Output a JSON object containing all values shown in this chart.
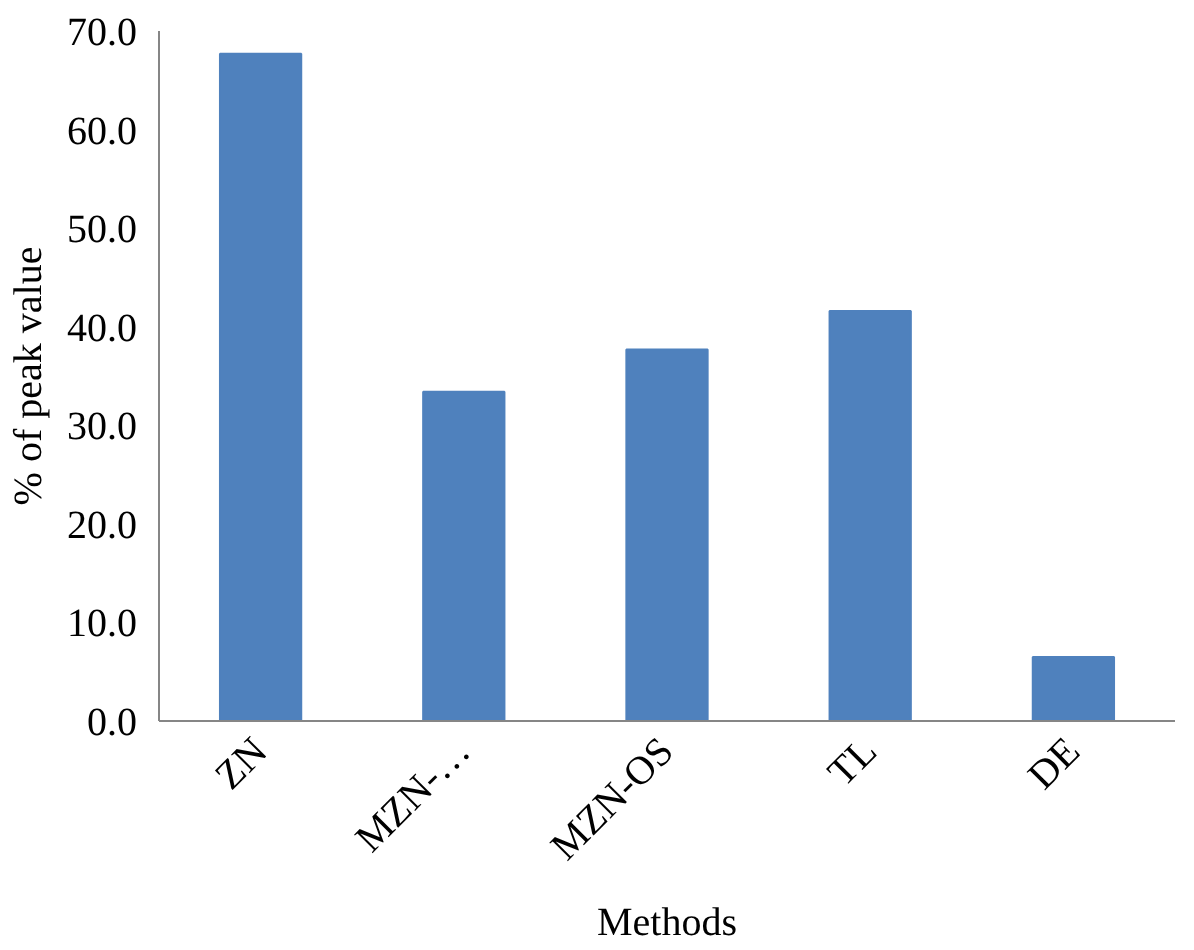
{
  "chart_data": {
    "type": "bar",
    "xlabel": "Methods",
    "ylabel": "% of peak value",
    "categories": [
      "ZN",
      "MZN-…",
      "MZN-OS",
      "TL",
      "DE"
    ],
    "values": [
      67.7,
      33.4,
      37.7,
      41.6,
      6.5
    ],
    "color": "#4f81bd",
    "ylim": [
      0,
      70
    ],
    "yticks": [
      {
        "value": 0,
        "label": "0.0"
      },
      {
        "value": 10,
        "label": "10.0"
      },
      {
        "value": 20,
        "label": "20.0"
      },
      {
        "value": 30,
        "label": "30.0"
      },
      {
        "value": 40,
        "label": "40.0"
      },
      {
        "value": 50,
        "label": "50.0"
      },
      {
        "value": 60,
        "label": "60.0"
      },
      {
        "value": 70,
        "label": "70.0"
      }
    ],
    "grid": false
  }
}
